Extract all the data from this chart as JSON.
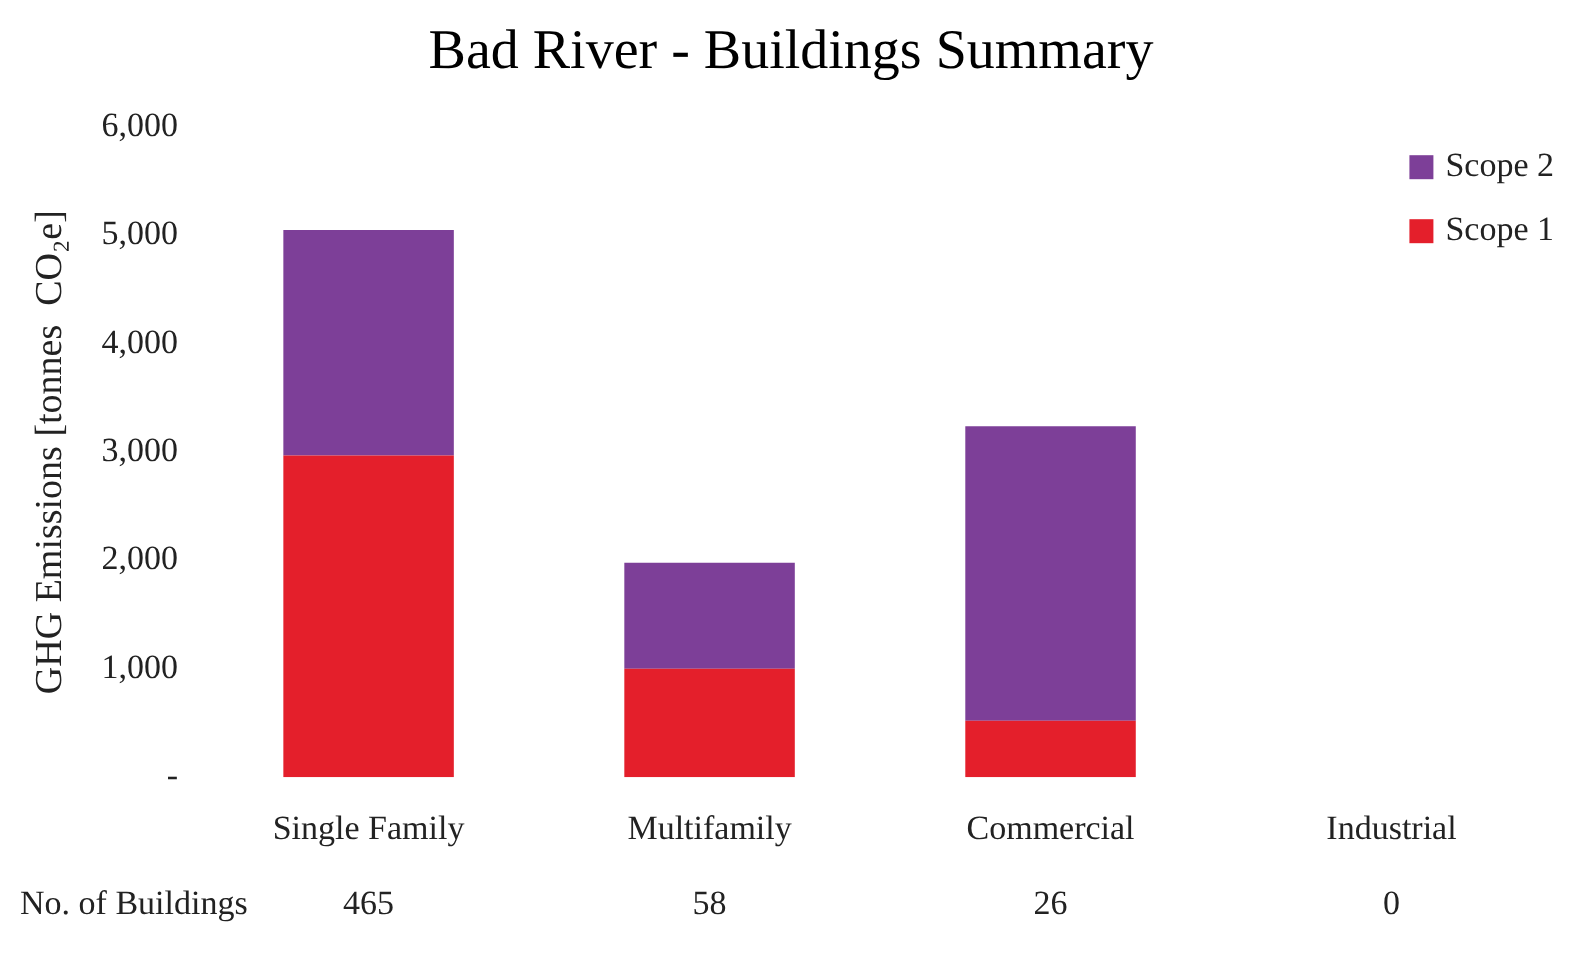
{
  "chart_data": {
    "type": "bar",
    "title": "Bad River - Buildings Summary",
    "ylabel": "GHG Emissions [tonnes  CO₂e]",
    "categories": [
      "Single Family",
      "Multifamily",
      "Commercial",
      "Industrial"
    ],
    "stacked": true,
    "series": [
      {
        "name": "Scope 1",
        "color": "#e41f2b",
        "values": [
          2970,
          1000,
          520,
          0
        ]
      },
      {
        "name": "Scope 2",
        "color": "#7d3f98",
        "values": [
          2080,
          980,
          2720,
          0
        ]
      }
    ],
    "ylim": [
      0,
      6000
    ],
    "yticks": [
      {
        "value": 0,
        "label": "-"
      },
      {
        "value": 1000,
        "label": "1,000"
      },
      {
        "value": 2000,
        "label": "2,000"
      },
      {
        "value": 3000,
        "label": "3,000"
      },
      {
        "value": 4000,
        "label": "4,000"
      },
      {
        "value": 5000,
        "label": "5,000"
      },
      {
        "value": 6000,
        "label": "6,000"
      }
    ],
    "legend": "top right",
    "annotations": [
      "No. of Buildings",
      "465",
      "58",
      "26",
      "0"
    ]
  }
}
